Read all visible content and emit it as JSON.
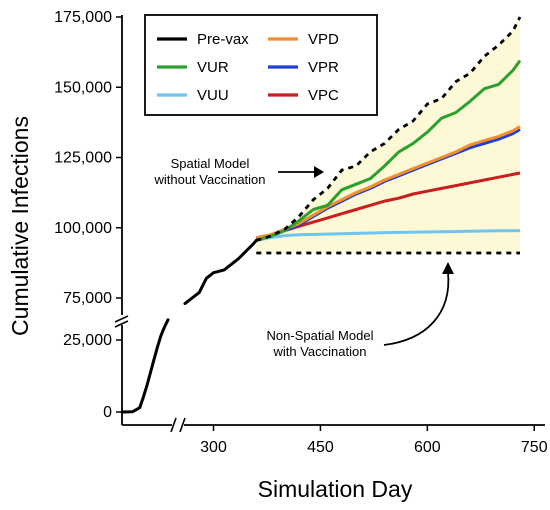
{
  "chart_data": {
    "type": "line",
    "xlabel": "Simulation Day",
    "ylabel": "Cumulative Infections",
    "x_ticks": [
      300,
      450,
      600,
      750
    ],
    "y_ticks_upper": [
      "75,000",
      "100,000",
      "125,000",
      "150,000",
      "175,000"
    ],
    "y_ticks_lower": [
      "0",
      "25,000"
    ],
    "x_range": [
      160,
      750
    ],
    "y_range_upper": [
      70000,
      176000
    ],
    "y_range_lower": [
      0,
      33000
    ],
    "legend_position": "top-left",
    "legend": [
      {
        "name": "Pre-vax",
        "color": "#000000",
        "style": "solid"
      },
      {
        "name": "VUR",
        "color": "#2ca02c",
        "style": "solid"
      },
      {
        "name": "VUU",
        "color": "#6ec6f0",
        "style": "solid"
      },
      {
        "name": "VPD",
        "color": "#f28e2b",
        "style": "solid"
      },
      {
        "name": "VPR",
        "color": "#1f3fd6",
        "style": "solid"
      },
      {
        "name": "VPC",
        "color": "#c81e1e",
        "style": "solid"
      }
    ],
    "series": [
      {
        "name": "Pre-vax",
        "color": "#000000",
        "segments": [
          {
            "panel": "lower",
            "points": [
              [
                160,
                0
              ],
              [
                175,
                100
              ],
              [
                185,
                1500
              ],
              [
                190,
                5000
              ],
              [
                195,
                9000
              ],
              [
                200,
                13500
              ],
              [
                205,
                18000
              ],
              [
                210,
                22500
              ],
              [
                215,
                26500
              ],
              [
                220,
                29500
              ],
              [
                225,
                32000
              ]
            ]
          },
          {
            "panel": "upper",
            "points": [
              [
                260,
                73000
              ],
              [
                270,
                75000
              ],
              [
                280,
                77000
              ],
              [
                285,
                79500
              ],
              [
                290,
                82000
              ],
              [
                300,
                84000
              ],
              [
                315,
                85000
              ],
              [
                325,
                87000
              ],
              [
                335,
                89000
              ],
              [
                345,
                91500
              ],
              [
                355,
                94000
              ],
              [
                360,
                95500
              ]
            ]
          }
        ]
      },
      {
        "name": "Spatial without vaccination",
        "color": "#000000",
        "dashed": true,
        "points": [
          [
            360,
            95500
          ],
          [
            380,
            97000
          ],
          [
            400,
            99500
          ],
          [
            420,
            104000
          ],
          [
            440,
            110000
          ],
          [
            460,
            114000
          ],
          [
            480,
            120500
          ],
          [
            500,
            122000
          ],
          [
            520,
            127000
          ],
          [
            540,
            130000
          ],
          [
            560,
            135000
          ],
          [
            580,
            138000
          ],
          [
            600,
            144000
          ],
          [
            620,
            146000
          ],
          [
            640,
            152000
          ],
          [
            660,
            155000
          ],
          [
            680,
            161000
          ],
          [
            700,
            165000
          ],
          [
            720,
            170000
          ],
          [
            730,
            175000
          ]
        ]
      },
      {
        "name": "VUR",
        "color": "#2ca02c",
        "points": [
          [
            360,
            95500
          ],
          [
            380,
            97000
          ],
          [
            400,
            99000
          ],
          [
            420,
            102500
          ],
          [
            440,
            106500
          ],
          [
            460,
            108000
          ],
          [
            480,
            113500
          ],
          [
            500,
            115500
          ],
          [
            520,
            117500
          ],
          [
            540,
            122000
          ],
          [
            560,
            127000
          ],
          [
            580,
            130000
          ],
          [
            600,
            134000
          ],
          [
            620,
            139000
          ],
          [
            640,
            141000
          ],
          [
            660,
            145000
          ],
          [
            680,
            149500
          ],
          [
            700,
            151000
          ],
          [
            720,
            156000
          ],
          [
            730,
            159500
          ]
        ]
      },
      {
        "name": "VPD",
        "color": "#f28e2b",
        "points": [
          [
            360,
            96500
          ],
          [
            380,
            97500
          ],
          [
            400,
            99500
          ],
          [
            420,
            101500
          ],
          [
            440,
            104500
          ],
          [
            460,
            107500
          ],
          [
            480,
            110000
          ],
          [
            500,
            112500
          ],
          [
            520,
            114500
          ],
          [
            540,
            117000
          ],
          [
            560,
            119000
          ],
          [
            580,
            121000
          ],
          [
            600,
            123000
          ],
          [
            620,
            125000
          ],
          [
            640,
            127000
          ],
          [
            660,
            129500
          ],
          [
            680,
            131000
          ],
          [
            700,
            132500
          ],
          [
            720,
            134500
          ],
          [
            730,
            136000
          ]
        ]
      },
      {
        "name": "VPR",
        "color": "#1f3fd6",
        "points": [
          [
            360,
            96000
          ],
          [
            380,
            97000
          ],
          [
            400,
            99000
          ],
          [
            420,
            101000
          ],
          [
            440,
            104000
          ],
          [
            460,
            107000
          ],
          [
            480,
            109500
          ],
          [
            500,
            112000
          ],
          [
            520,
            114000
          ],
          [
            540,
            116500
          ],
          [
            560,
            118500
          ],
          [
            580,
            120500
          ],
          [
            600,
            122500
          ],
          [
            620,
            124500
          ],
          [
            640,
            126500
          ],
          [
            660,
            128500
          ],
          [
            680,
            130000
          ],
          [
            700,
            131500
          ],
          [
            720,
            133500
          ],
          [
            730,
            135000
          ]
        ]
      },
      {
        "name": "VPC",
        "color": "#c81e1e",
        "points": [
          [
            360,
            96000
          ],
          [
            380,
            97500
          ],
          [
            400,
            99000
          ],
          [
            420,
            100500
          ],
          [
            440,
            102000
          ],
          [
            460,
            103500
          ],
          [
            480,
            105000
          ],
          [
            500,
            106500
          ],
          [
            520,
            108000
          ],
          [
            540,
            109500
          ],
          [
            560,
            110500
          ],
          [
            580,
            112000
          ],
          [
            600,
            113000
          ],
          [
            620,
            114000
          ],
          [
            640,
            115000
          ],
          [
            660,
            116000
          ],
          [
            680,
            117000
          ],
          [
            700,
            118000
          ],
          [
            720,
            119000
          ],
          [
            730,
            119500
          ]
        ]
      },
      {
        "name": "VUU",
        "color": "#6ec6f0",
        "points": [
          [
            360,
            95500
          ],
          [
            380,
            96500
          ],
          [
            400,
            97200
          ],
          [
            420,
            97500
          ],
          [
            450,
            97700
          ],
          [
            500,
            98000
          ],
          [
            550,
            98300
          ],
          [
            600,
            98500
          ],
          [
            650,
            98700
          ],
          [
            700,
            98900
          ],
          [
            730,
            99000
          ]
        ]
      },
      {
        "name": "Non-spatial with vaccination",
        "color": "#000000",
        "dashed": true,
        "points": [
          [
            360,
            91000
          ],
          [
            730,
            91000
          ]
        ]
      }
    ],
    "annotations": [
      {
        "id": "spatial",
        "lines": [
          "Spatial Model",
          "without Vaccination"
        ]
      },
      {
        "id": "nonspatial",
        "lines": [
          "Non-Spatial Model",
          "with Vaccination"
        ]
      }
    ]
  }
}
